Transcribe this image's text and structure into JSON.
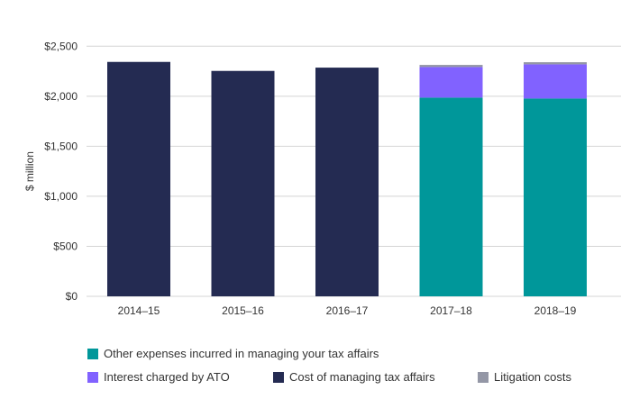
{
  "chart_data": {
    "type": "bar",
    "stacked": true,
    "title": "",
    "xlabel": "",
    "ylabel": "$ million",
    "ylim": [
      0,
      2500
    ],
    "yticks": [
      "$0",
      "$500",
      "$1,000",
      "$1,500",
      "$2,000",
      "$2,500"
    ],
    "ytick_values": [
      0,
      500,
      1000,
      1500,
      2000,
      2500
    ],
    "grid": true,
    "legend_position": "bottom",
    "categories": [
      "2014–15",
      "2015–16",
      "2016–17",
      "2017–18",
      "2018–19"
    ],
    "series": [
      {
        "name": "Cost of managing tax affairs",
        "color": "#242b52",
        "values": [
          2343,
          2253,
          2286,
          0,
          0
        ]
      },
      {
        "name": "Other expenses incurred in managing your tax affairs",
        "color": "#00979a",
        "values": [
          0,
          0,
          0,
          1986,
          1977
        ]
      },
      {
        "name": "Interest charged by ATO",
        "color": "#8162ff",
        "values": [
          0,
          0,
          0,
          306,
          342
        ]
      },
      {
        "name": "Litigation costs",
        "color": "#9497a6",
        "values": [
          0,
          0,
          0,
          21,
          21
        ]
      }
    ]
  }
}
